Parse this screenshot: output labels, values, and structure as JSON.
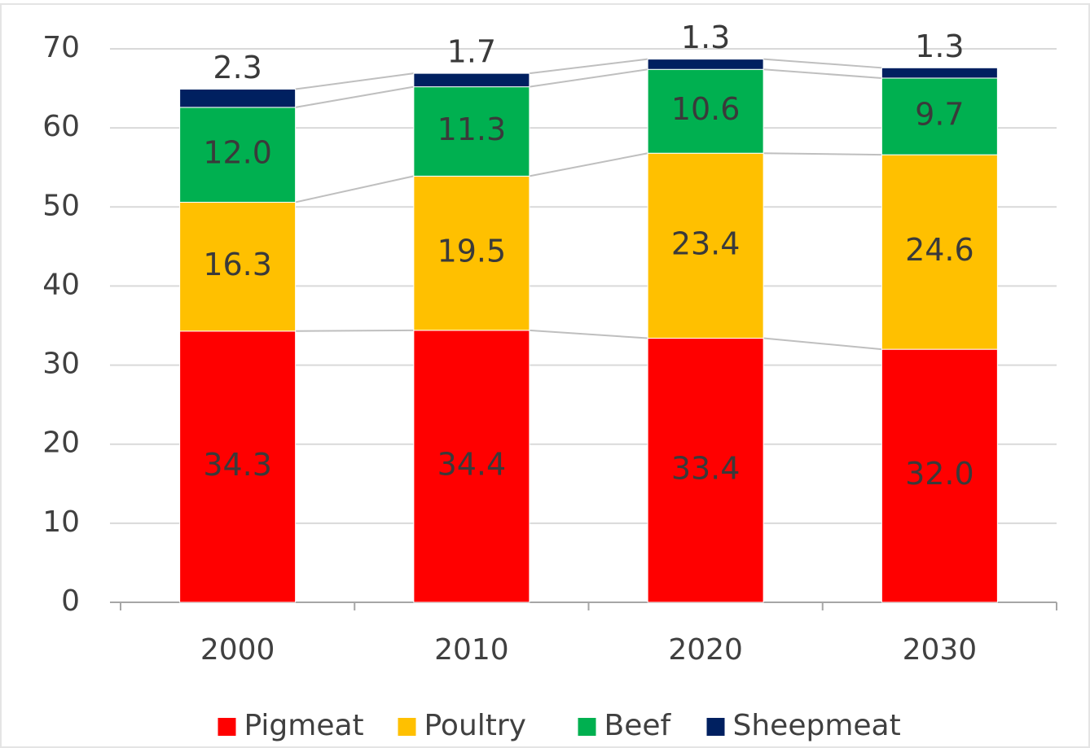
{
  "chart_data": {
    "type": "stacked_bar",
    "categories": [
      "2000",
      "2010",
      "2020",
      "2030"
    ],
    "series": [
      {
        "name": "Pigmeat",
        "color": "#ff0000",
        "values": [
          34.3,
          34.4,
          33.4,
          32
        ],
        "value_labels": [
          "34.3",
          "34.4",
          "33.4",
          "32.0"
        ]
      },
      {
        "name": "Poultry",
        "color": "#ffc000",
        "values": [
          16.3,
          19.5,
          23.4,
          24.6
        ]
      },
      {
        "name": "Beef",
        "color": "#00b050",
        "values": [
          12,
          11.3,
          10.6,
          9.7
        ],
        "value_labels": [
          "12.0",
          "11.3",
          "10.6",
          "9.7"
        ]
      },
      {
        "name": "Sheepmeat",
        "color": "#002060",
        "values": [
          2.3,
          1.7,
          1.3,
          1.3
        ]
      }
    ],
    "ylim": [
      0,
      70
    ],
    "yticks": [
      0,
      10,
      20,
      30,
      40,
      50,
      60,
      70
    ],
    "grid": true,
    "legend": "bottom"
  }
}
